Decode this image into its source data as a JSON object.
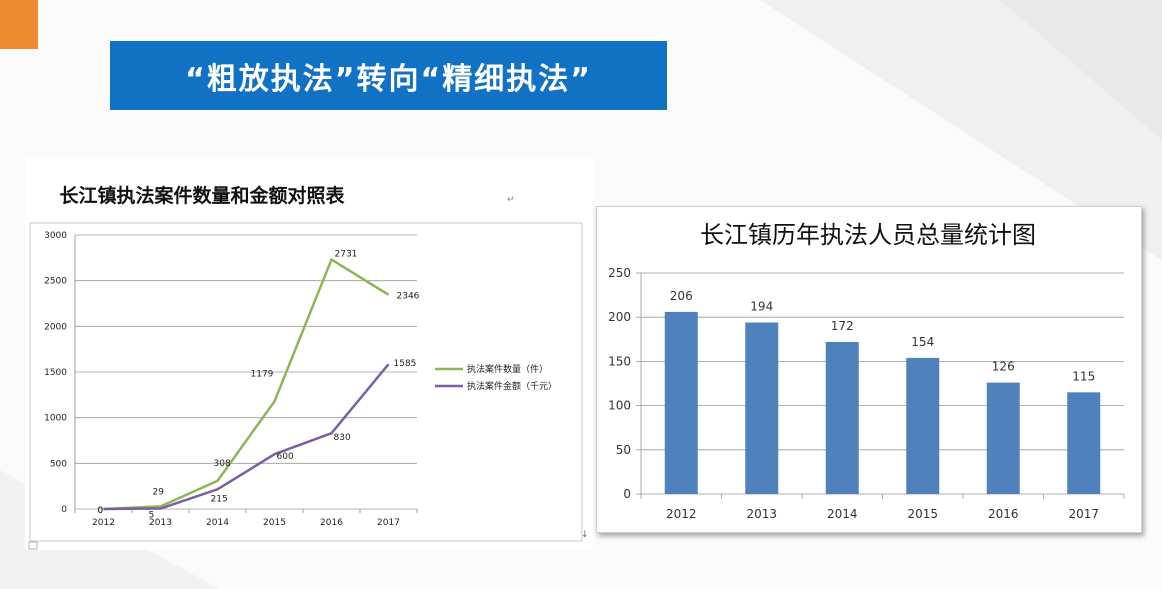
{
  "slide": {
    "title": "“粗放执法”转向“精细执法”",
    "accent_colors": {
      "banner": "#1171c4",
      "corner": "#f08a32"
    }
  },
  "chart_data": [
    {
      "type": "line",
      "title": "长江镇执法案件数量和金额对照表",
      "categories": [
        "2012",
        "2013",
        "2014",
        "2015",
        "2016",
        "2017"
      ],
      "series": [
        {
          "name": "执法案件数量（件）",
          "values": [
            0,
            29,
            308,
            1179,
            2731,
            2346
          ],
          "color": "#8db653"
        },
        {
          "name": "执法案件金额（千元）",
          "values": [
            0,
            5,
            215,
            600,
            830,
            1585
          ],
          "color": "#7c5ea4"
        }
      ],
      "ylim": [
        0,
        3000
      ],
      "yticks": [
        "0",
        "500",
        "1000",
        "1500",
        "2000",
        "2500",
        "3000"
      ],
      "grid": true,
      "legend": "right"
    },
    {
      "type": "bar",
      "title": "长江镇历年执法人员总量统计图",
      "categories": [
        "2012",
        "2013",
        "2014",
        "2015",
        "2016",
        "2017"
      ],
      "values": [
        206,
        194,
        172,
        154,
        126,
        115
      ],
      "color": "#4f81bd",
      "ylim": [
        0,
        250
      ],
      "yticks": [
        "0",
        "50",
        "100",
        "150",
        "200",
        "250"
      ],
      "grid": true
    }
  ]
}
